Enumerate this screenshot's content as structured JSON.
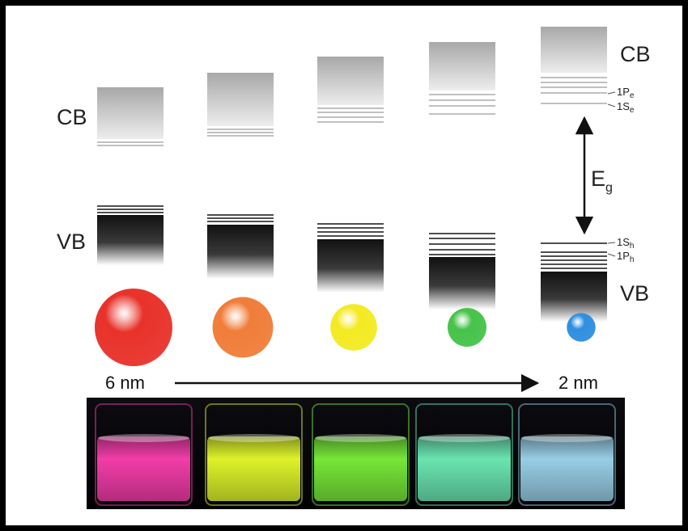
{
  "labels": {
    "cb": "CB",
    "vb": "VB",
    "eg_main": "E",
    "eg_sub": "g",
    "s1e_main": "1S",
    "s1e_sub": "e",
    "p1e_main": "1P",
    "p1e_sub": "e",
    "s1h_main": "1S",
    "s1h_sub": "h",
    "p1h_main": "1P",
    "p1h_sub": "h",
    "size_large": "6 nm",
    "size_small": "2 nm"
  },
  "dots": [
    {
      "color": "#e8322a",
      "relative_size": 1.0
    },
    {
      "color": "#f07d3a",
      "relative_size": 0.78
    },
    {
      "color": "#f4ea22",
      "relative_size": 0.6
    },
    {
      "color": "#46c34a",
      "relative_size": 0.5
    },
    {
      "color": "#2f8fe0",
      "relative_size": 0.37
    }
  ],
  "vials": [
    {
      "glow": "#ff3fb0"
    },
    {
      "glow": "#e8ff2a"
    },
    {
      "glow": "#7cf23a"
    },
    {
      "glow": "#6ff0b8"
    },
    {
      "glow": "#9fd8f0"
    }
  ]
}
